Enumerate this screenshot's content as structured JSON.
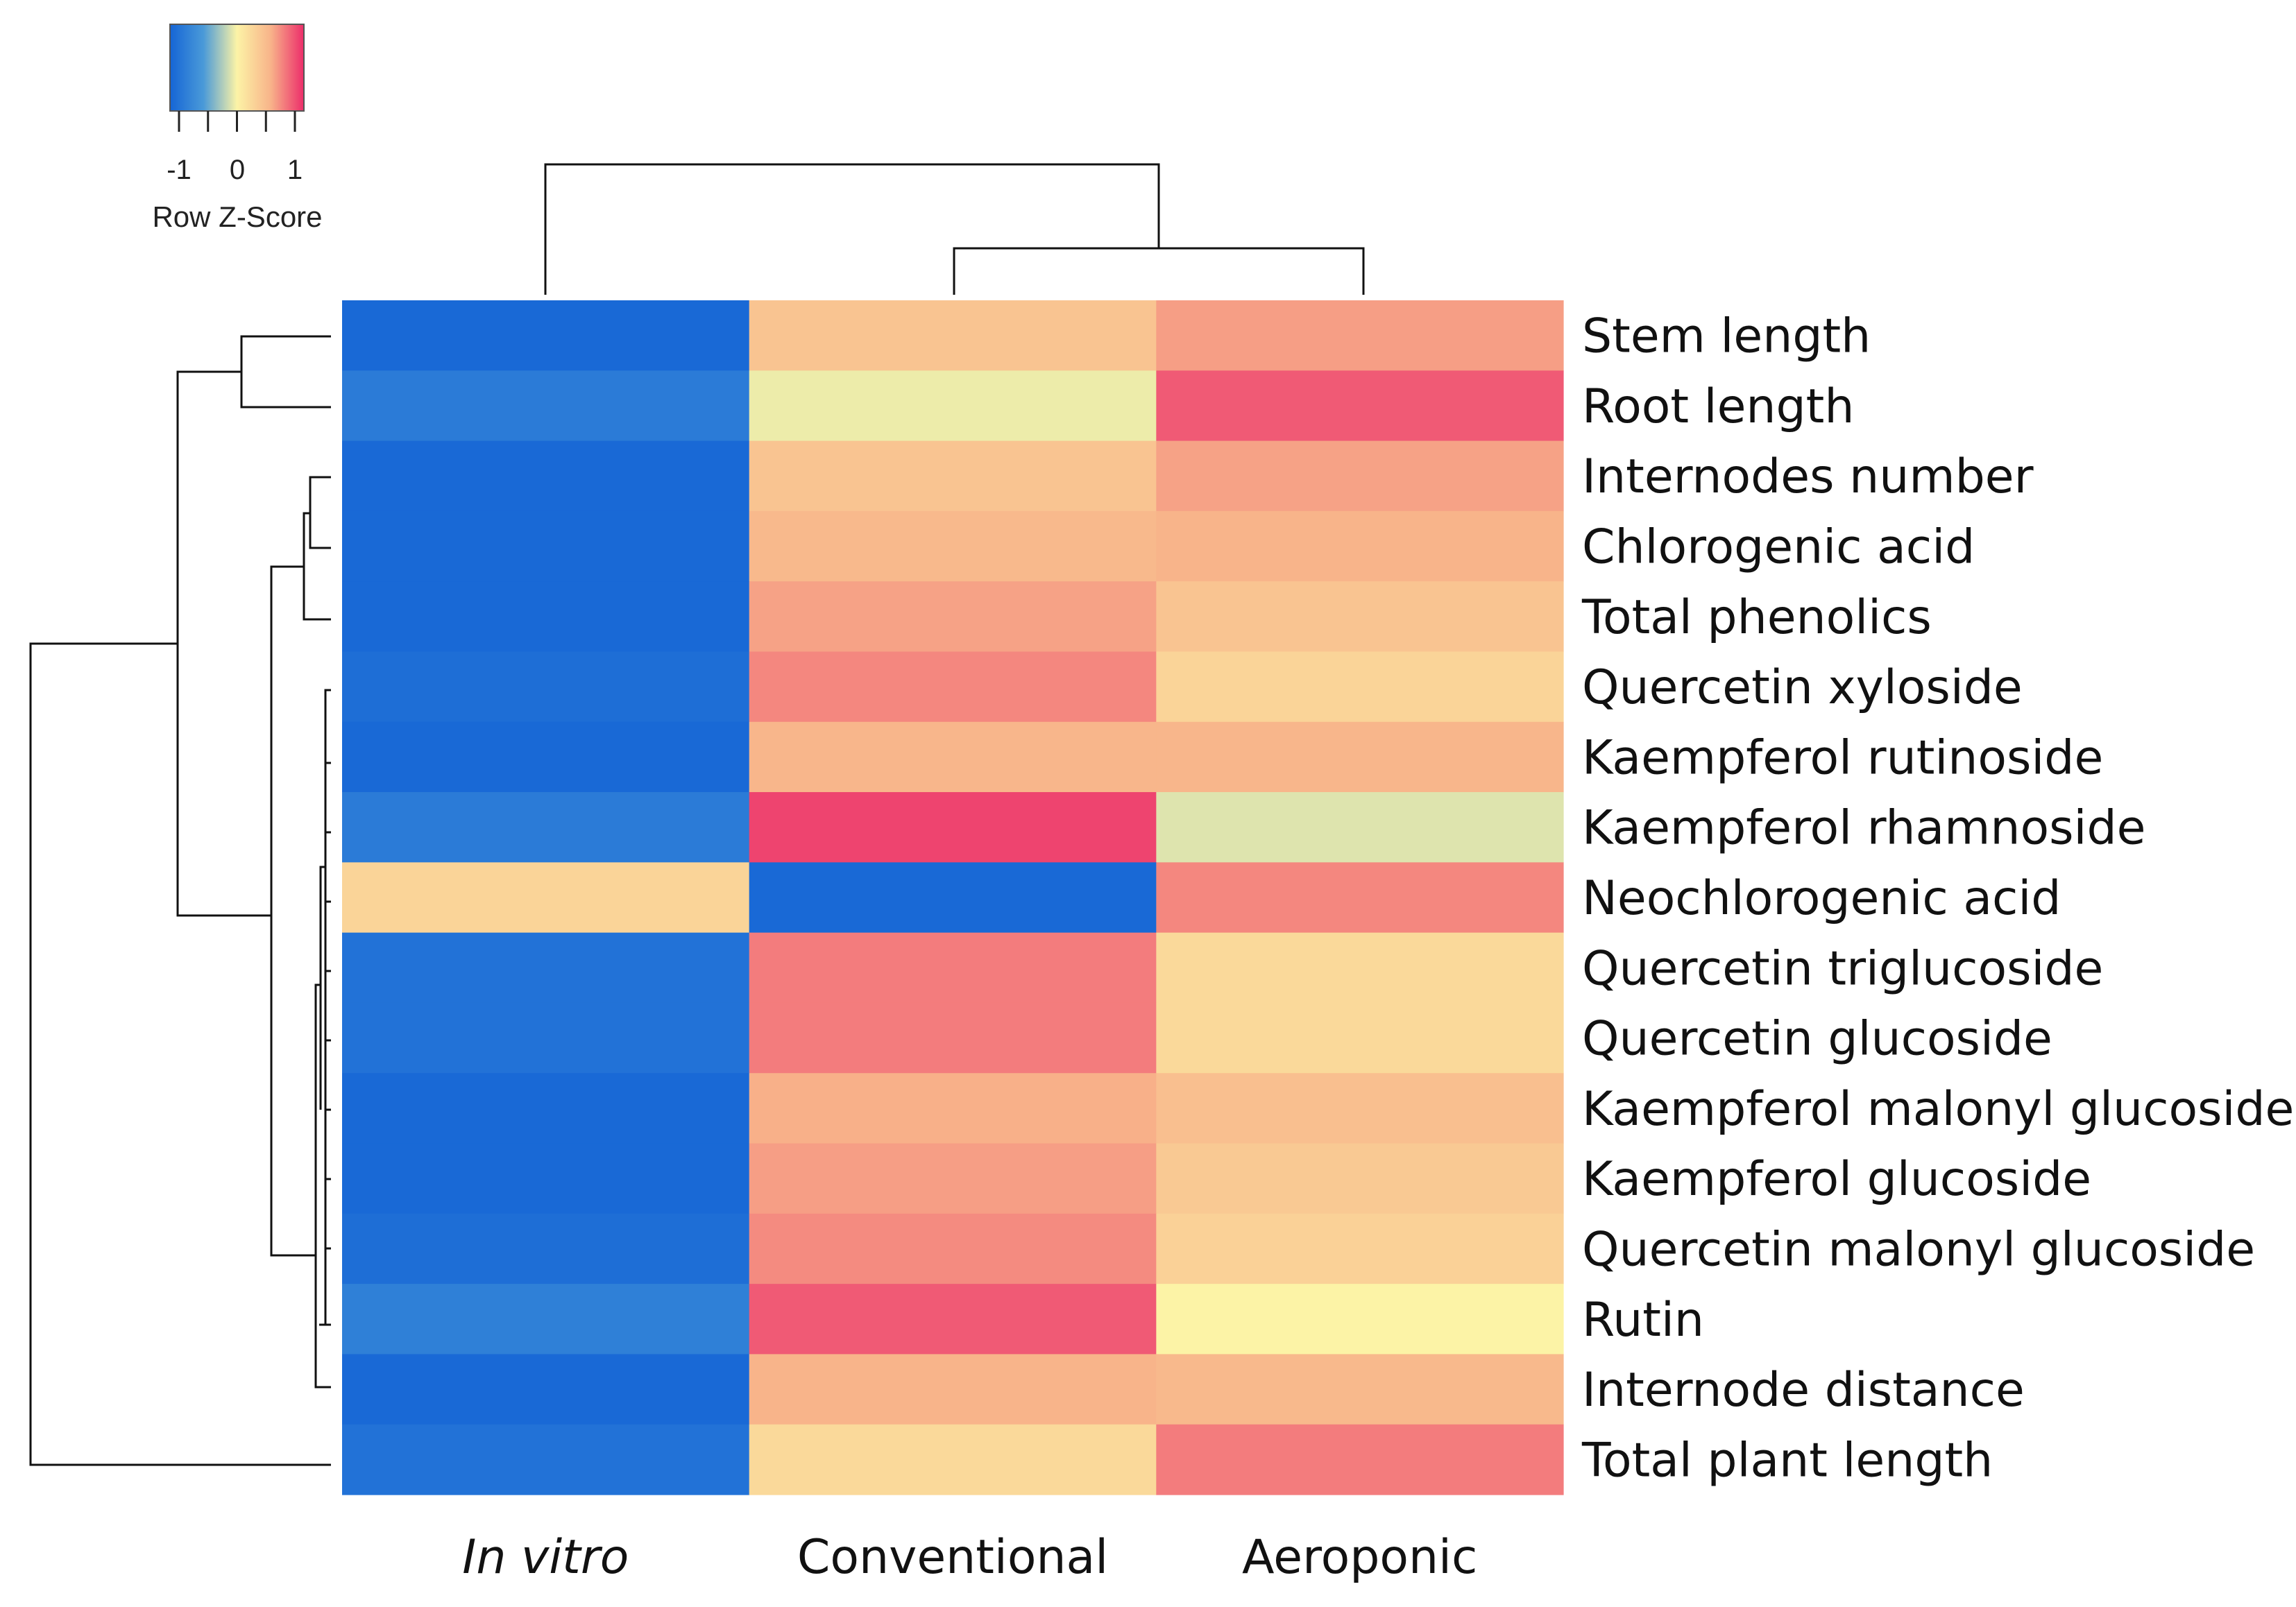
{
  "chart_data": {
    "type": "heatmap",
    "title": "",
    "columns": [
      {
        "label": "In vitro",
        "italic": true
      },
      {
        "label": "Conventional",
        "italic": false
      },
      {
        "label": "Aeroponic",
        "italic": false
      }
    ],
    "rows": [
      "Stem length",
      "Root length",
      "Internodes number",
      "Chlorogenic acid",
      "Total phenolics",
      "Quercetin xyloside",
      "Kaempferol rutinoside",
      "Kaempferol rhamnoside",
      "Neochlorogenic acid",
      "Quercetin triglucoside",
      "Quercetin glucoside",
      "Kaempferol malonyl glucoside",
      "Kaempferol glucoside",
      "Quercetin malonyl glucoside",
      "Rutin",
      "Internode distance",
      "Total plant length"
    ],
    "values": [
      [
        -1.15,
        0.45,
        0.7
      ],
      [
        -0.95,
        -0.05,
        1.0
      ],
      [
        -1.15,
        0.45,
        0.68
      ],
      [
        -1.15,
        0.55,
        0.6
      ],
      [
        -1.15,
        0.68,
        0.45
      ],
      [
        -1.1,
        0.8,
        0.3
      ],
      [
        -1.15,
        0.58,
        0.58
      ],
      [
        -0.95,
        1.1,
        -0.1
      ],
      [
        0.3,
        -1.15,
        0.8
      ],
      [
        -1.05,
        0.85,
        0.25
      ],
      [
        -1.05,
        0.85,
        0.25
      ],
      [
        -1.15,
        0.62,
        0.5
      ],
      [
        -1.15,
        0.7,
        0.4
      ],
      [
        -1.1,
        0.78,
        0.32
      ],
      [
        -0.9,
        1.0,
        0.0
      ],
      [
        -1.15,
        0.6,
        0.55
      ],
      [
        -1.05,
        0.25,
        0.85
      ]
    ],
    "color_scale": {
      "stops": [
        "#1565d6",
        "#4a9ad8",
        "#fcf3a6",
        "#f8b48a",
        "#ec2d6a"
      ],
      "min": -1.2,
      "max": 1.2
    },
    "legend": {
      "title": "Row Z-Score",
      "tick_labels": [
        "-1",
        "0",
        "1"
      ],
      "placement": "top-left"
    },
    "column_dendrogram": {
      "merges": [
        {
          "children": [
            "Conventional",
            "Aeroponic"
          ],
          "height": 1
        },
        {
          "children": [
            "In vitro",
            "cluster-1"
          ],
          "height": 2
        }
      ]
    },
    "row_dendrogram": "hierarchical clustering of the 17 rows shown on the left"
  }
}
